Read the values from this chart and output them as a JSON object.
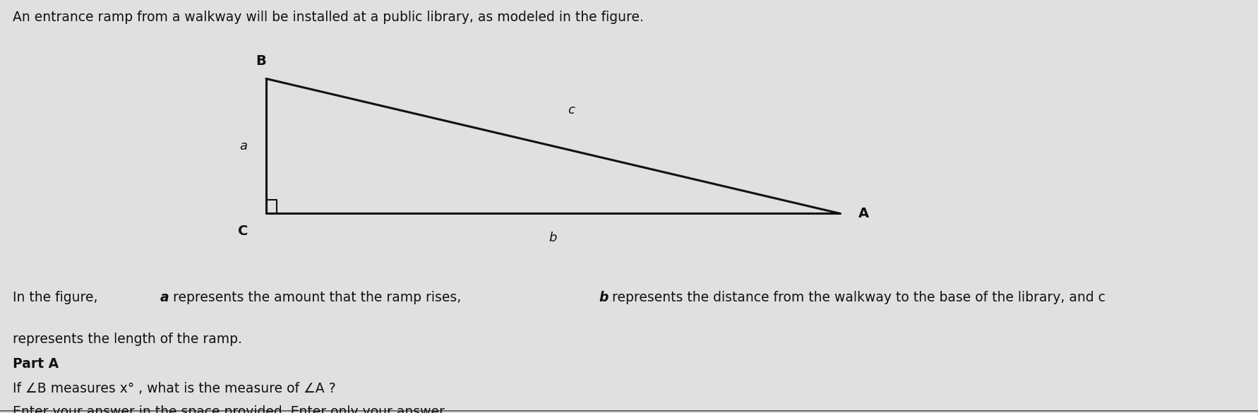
{
  "title_text": "An entrance ramp from a walkway will be installed at a public library, as modeled in the figure.",
  "bg_color": "#e0e0e0",
  "triangle": {
    "B": [
      0.0,
      1.0
    ],
    "C": [
      0.0,
      0.0
    ],
    "A": [
      5.5,
      0.0
    ]
  },
  "label_B": "B",
  "label_C": "C",
  "label_A": "A",
  "label_a": "a",
  "label_b": "b",
  "label_c": "c",
  "part_a_label": "Part A",
  "question_line1": "If ∠B measures x° , what is the measure of ∠A ?",
  "instruction": "Enter your answer in the space provided. Enter only your answer.",
  "line_color": "#111111",
  "text_color": "#111111",
  "title_fontsize": 13.5,
  "body_fontsize": 13.5,
  "label_fontsize": 14
}
